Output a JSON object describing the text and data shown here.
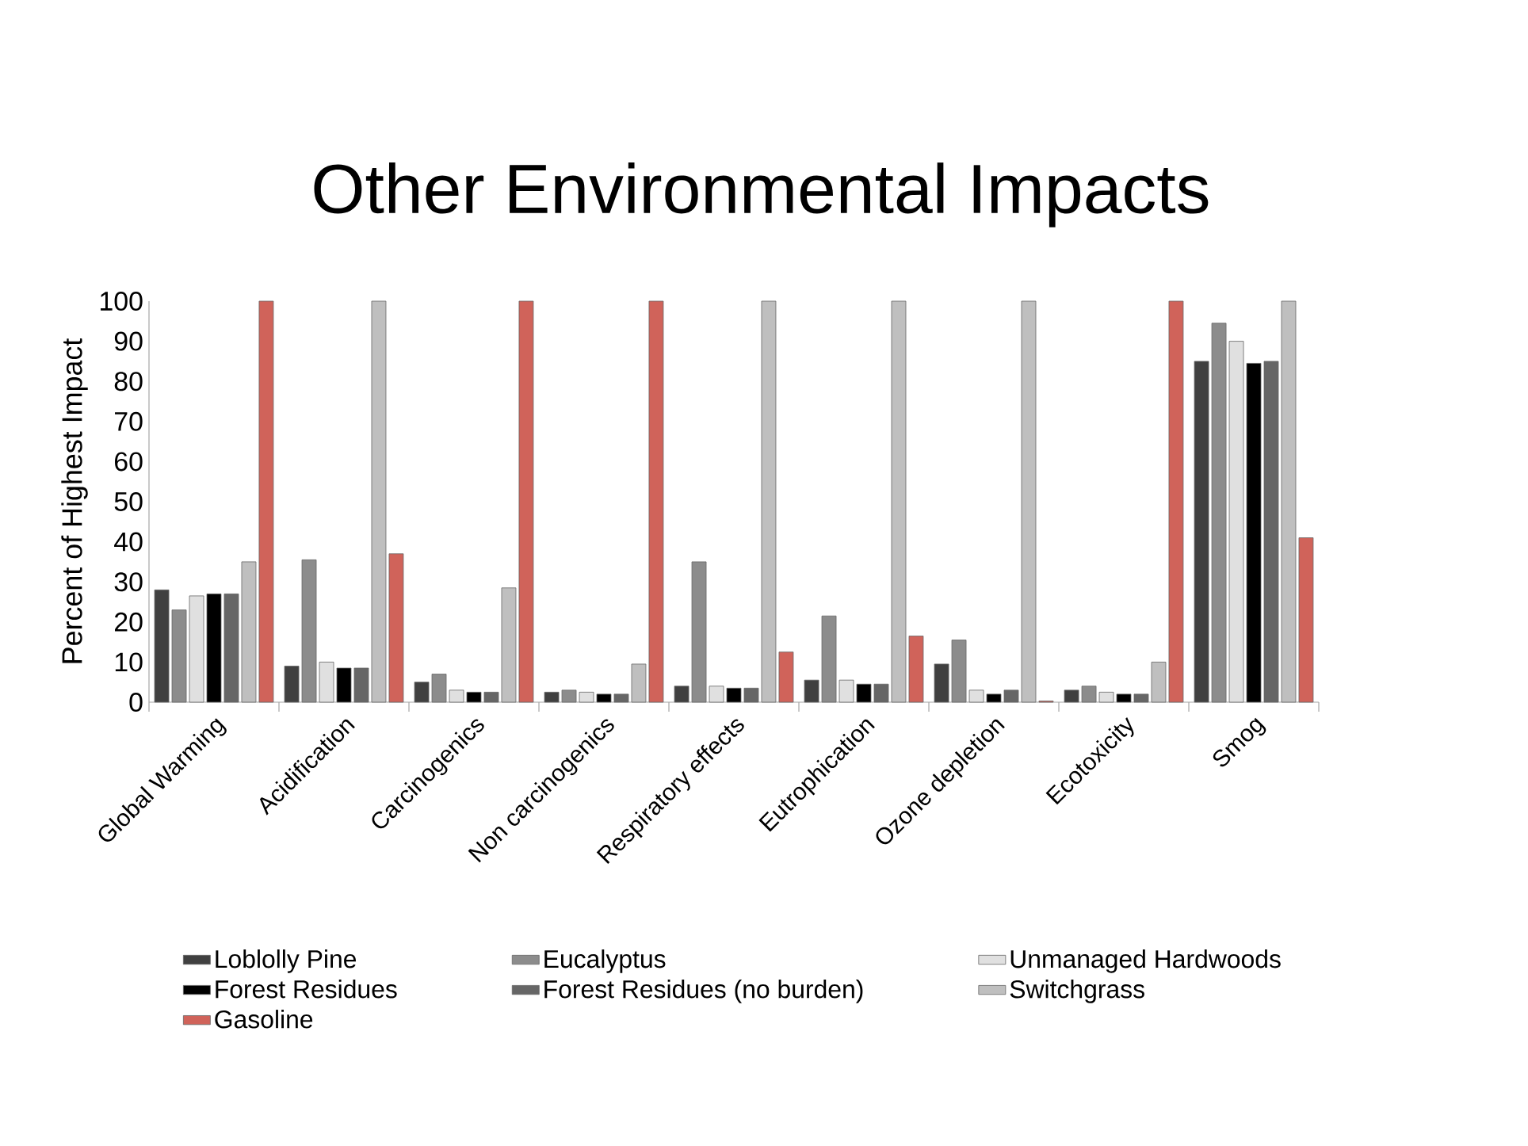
{
  "chart_data": {
    "type": "bar",
    "title": "Other Environmental Impacts",
    "ylabel": "Percent of Highest Impact",
    "categories": [
      "Global Warming",
      "Acidification",
      "Carcinogenics",
      "Non carcinogenics",
      "Respiratory effects",
      "Eutrophication",
      "Ozone depletion",
      "Ecotoxicity",
      "Smog"
    ],
    "series": [
      {
        "name": "Loblolly Pine",
        "color": "#404040",
        "values": [
          28,
          9,
          5,
          2.5,
          4,
          5.5,
          9.5,
          3,
          85
        ]
      },
      {
        "name": "Eucalyptus",
        "color": "#8c8c8c",
        "values": [
          23,
          35.5,
          7,
          3,
          35,
          21.5,
          15.5,
          4,
          94.5
        ]
      },
      {
        "name": "Unmanaged Hardwoods",
        "color": "#e0e0e0",
        "values": [
          26.5,
          10,
          3,
          2.5,
          4,
          5.5,
          3,
          2.5,
          90
        ]
      },
      {
        "name": "Forest Residues",
        "color": "#000000",
        "values": [
          27,
          8.5,
          2.5,
          2,
          3.5,
          4.5,
          2,
          2,
          84.5
        ]
      },
      {
        "name": "Forest Residues (no burden)",
        "color": "#666666",
        "values": [
          27,
          8.5,
          2.5,
          2,
          3.5,
          4.5,
          3,
          2,
          85
        ]
      },
      {
        "name": "Switchgrass",
        "color": "#bfbfbf",
        "values": [
          35,
          100,
          28.5,
          9.5,
          100,
          100,
          100,
          10,
          100
        ]
      },
      {
        "name": "Gasoline",
        "color": "#d0635a",
        "values": [
          100,
          37,
          100,
          100,
          12.5,
          16.5,
          0.3,
          100,
          41
        ]
      }
    ],
    "ylim": [
      0,
      100
    ],
    "yticks": [
      0,
      10,
      20,
      30,
      40,
      50,
      60,
      70,
      80,
      90,
      100
    ],
    "grid": false,
    "legend": "bottom"
  }
}
